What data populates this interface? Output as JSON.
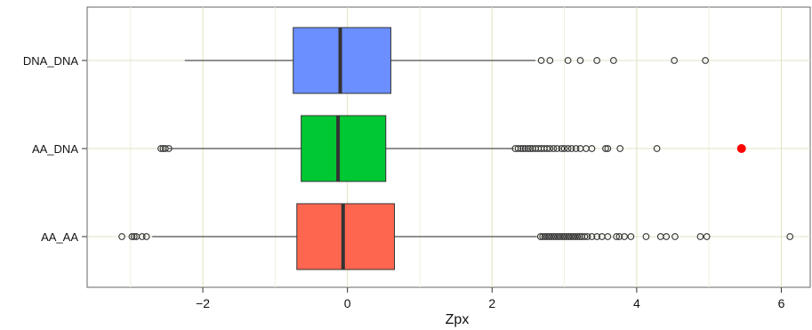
{
  "chart_data": {
    "type": "boxplot",
    "orientation": "horizontal",
    "xlabel": "Zpx",
    "xlim": [
      -3.6,
      6.4
    ],
    "xticks": [
      -2,
      0,
      2,
      4,
      6
    ],
    "xtick_labels": [
      "−2",
      "0",
      "2",
      "4",
      "6"
    ],
    "grid": true,
    "categories": [
      "DNA_DNA",
      "AA_DNA",
      "AA_AA"
    ],
    "series": [
      {
        "category": "DNA_DNA",
        "color": "#6b8fff",
        "whisker_low": -2.25,
        "q1": -0.75,
        "median": -0.1,
        "q3": 0.6,
        "whisker_high": 2.6,
        "outliers": [
          2.68,
          2.8,
          3.05,
          3.22,
          3.45,
          3.68,
          4.52,
          4.95
        ]
      },
      {
        "category": "AA_DNA",
        "color": "#00c832",
        "whisker_low": -2.48,
        "q1": -0.64,
        "median": -0.13,
        "q3": 0.53,
        "whisker_high": 2.3,
        "outliers": [
          -2.58,
          -2.55,
          -2.52,
          -2.47,
          2.32,
          2.36,
          2.4,
          2.43,
          2.46,
          2.5,
          2.53,
          2.56,
          2.6,
          2.64,
          2.68,
          2.72,
          2.76,
          2.8,
          2.85,
          2.9,
          2.96,
          3.0,
          3.05,
          3.1,
          3.16,
          3.22,
          3.3,
          3.38,
          3.57,
          3.6,
          3.77,
          4.28
        ],
        "highlight": {
          "value": 5.45,
          "color": "#ff0000"
        }
      },
      {
        "category": "AA_AA",
        "color": "#ff6650",
        "whisker_low": -2.7,
        "q1": -0.7,
        "median": -0.06,
        "q3": 0.65,
        "whisker_high": 2.62,
        "outliers": [
          -3.12,
          -2.98,
          -2.95,
          -2.92,
          -2.84,
          -2.78,
          2.67,
          2.7,
          2.73,
          2.76,
          2.79,
          2.82,
          2.85,
          2.88,
          2.91,
          2.94,
          2.97,
          3.0,
          3.03,
          3.06,
          3.09,
          3.12,
          3.15,
          3.18,
          3.21,
          3.24,
          3.28,
          3.32,
          3.38,
          3.45,
          3.52,
          3.6,
          3.72,
          3.76,
          3.83,
          3.92,
          4.13,
          4.33,
          4.41,
          4.53,
          4.88,
          4.97,
          6.12
        ]
      }
    ]
  }
}
